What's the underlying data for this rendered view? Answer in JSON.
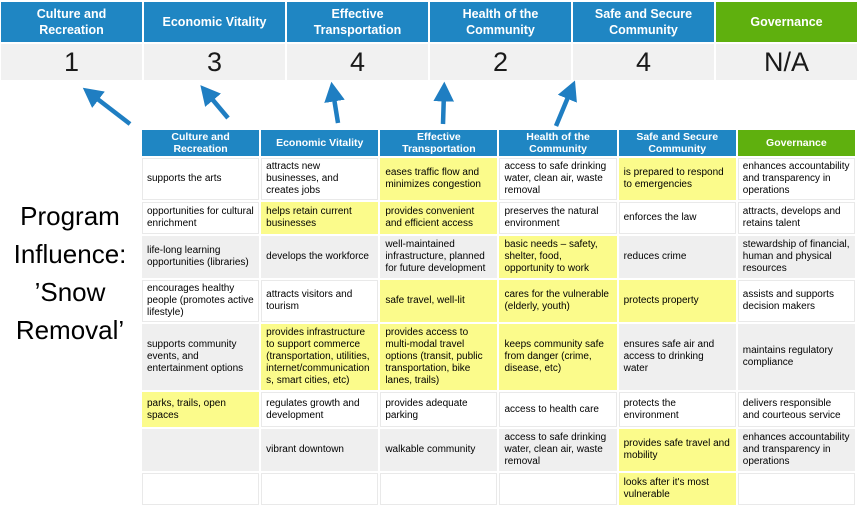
{
  "colors": {
    "header_blue": "#1F86C3",
    "header_green": "#5FB00E",
    "highlight_yellow": "#FBFB8B",
    "stripe_gray": "#EFEFEF",
    "score_row_gray": "#F1F1F1",
    "arrow_blue": "#1F7EC2"
  },
  "program_title": "Program\nInfluence:\n’Snow\nRemoval’",
  "score_band": {
    "columns": [
      {
        "label": "Culture and Recreation",
        "score": "1",
        "color": "blue"
      },
      {
        "label": "Economic Vitality",
        "score": "3",
        "color": "blue"
      },
      {
        "label": "Effective Transportation",
        "score": "4",
        "color": "blue"
      },
      {
        "label": "Health of the Community",
        "score": "2",
        "color": "blue"
      },
      {
        "label": "Safe and Secure Community",
        "score": "4",
        "color": "blue"
      },
      {
        "label": "Governance",
        "score": "N/A",
        "color": "green"
      }
    ]
  },
  "matrix": {
    "headers": [
      {
        "label": "Culture and Recreation",
        "color": "blue"
      },
      {
        "label": "Economic Vitality",
        "color": "blue"
      },
      {
        "label": "Effective Transportation",
        "color": "blue"
      },
      {
        "label": "Health of the Community",
        "color": "blue"
      },
      {
        "label": "Safe and Secure Community",
        "color": "blue"
      },
      {
        "label": "Governance",
        "color": "green"
      }
    ],
    "stripe_rows": [
      3,
      5,
      7
    ],
    "rows": [
      [
        {
          "text": "supports the arts",
          "highlight": false
        },
        {
          "text": "attracts new businesses, and creates jobs",
          "highlight": false
        },
        {
          "text": "eases traffic flow and minimizes congestion",
          "highlight": true
        },
        {
          "text": "access to safe drinking water, clean air, waste removal",
          "highlight": false
        },
        {
          "text": "is prepared to respond to emergencies",
          "highlight": true
        },
        {
          "text": "enhances accountability and transparency in operations",
          "highlight": false
        }
      ],
      [
        {
          "text": "opportunities for cultural enrichment",
          "highlight": false
        },
        {
          "text": "helps retain current businesses",
          "highlight": true
        },
        {
          "text": "provides convenient and efficient access",
          "highlight": true
        },
        {
          "text": "preserves the natural environment",
          "highlight": false
        },
        {
          "text": "enforces the law",
          "highlight": false
        },
        {
          "text": "attracts, develops and retains talent",
          "highlight": false
        }
      ],
      [
        {
          "text": "life-long learning opportunities (libraries)",
          "highlight": false
        },
        {
          "text": "develops the workforce",
          "highlight": false
        },
        {
          "text": "well-maintained infrastructure, planned for future development",
          "highlight": false
        },
        {
          "text": "basic needs – safety, shelter, food, opportunity to work",
          "highlight": true
        },
        {
          "text": "reduces crime",
          "highlight": false
        },
        {
          "text": "stewardship of financial, human and physical resources",
          "highlight": false
        }
      ],
      [
        {
          "text": "encourages healthy people (promotes active lifestyle)",
          "highlight": false
        },
        {
          "text": "attracts visitors and tourism",
          "highlight": false
        },
        {
          "text": "safe travel, well-lit",
          "highlight": true
        },
        {
          "text": "cares for the vulnerable (elderly, youth)",
          "highlight": true
        },
        {
          "text": "protects property",
          "highlight": true
        },
        {
          "text": "assists and supports decision makers",
          "highlight": false
        }
      ],
      [
        {
          "text": "supports community events, and entertainment options",
          "highlight": false
        },
        {
          "text": "provides infrastructure to support commerce (transportation, utilities, internet/communications, smart cities, etc)",
          "highlight": true
        },
        {
          "text": "provides access to multi-modal travel options (transit, public transportation, bike lanes, trails)",
          "highlight": true
        },
        {
          "text": "keeps community safe from danger (crime, disease, etc)",
          "highlight": true
        },
        {
          "text": "ensures safe air and access to drinking water",
          "highlight": false
        },
        {
          "text": "maintains regulatory compliance",
          "highlight": false
        }
      ],
      [
        {
          "text": "parks, trails, open spaces",
          "highlight": true
        },
        {
          "text": "regulates growth and development",
          "highlight": false
        },
        {
          "text": "provides adequate parking",
          "highlight": false
        },
        {
          "text": "access to health care",
          "highlight": false
        },
        {
          "text": "protects the environment",
          "highlight": false
        },
        {
          "text": "delivers responsible and courteous service",
          "highlight": false
        }
      ],
      [
        {
          "text": "",
          "highlight": false
        },
        {
          "text": "vibrant downtown",
          "highlight": false
        },
        {
          "text": "walkable community",
          "highlight": false
        },
        {
          "text": "access to safe drinking water, clean air, waste removal",
          "highlight": false
        },
        {
          "text": "provides safe travel and mobility",
          "highlight": true
        },
        {
          "text": "enhances accountability and transparency in operations",
          "highlight": false
        }
      ],
      [
        {
          "text": "",
          "highlight": false
        },
        {
          "text": "",
          "highlight": false
        },
        {
          "text": "",
          "highlight": false
        },
        {
          "text": "",
          "highlight": false
        },
        {
          "text": "looks after it's most vulnerable",
          "highlight": true
        },
        {
          "text": "",
          "highlight": false
        }
      ]
    ]
  }
}
